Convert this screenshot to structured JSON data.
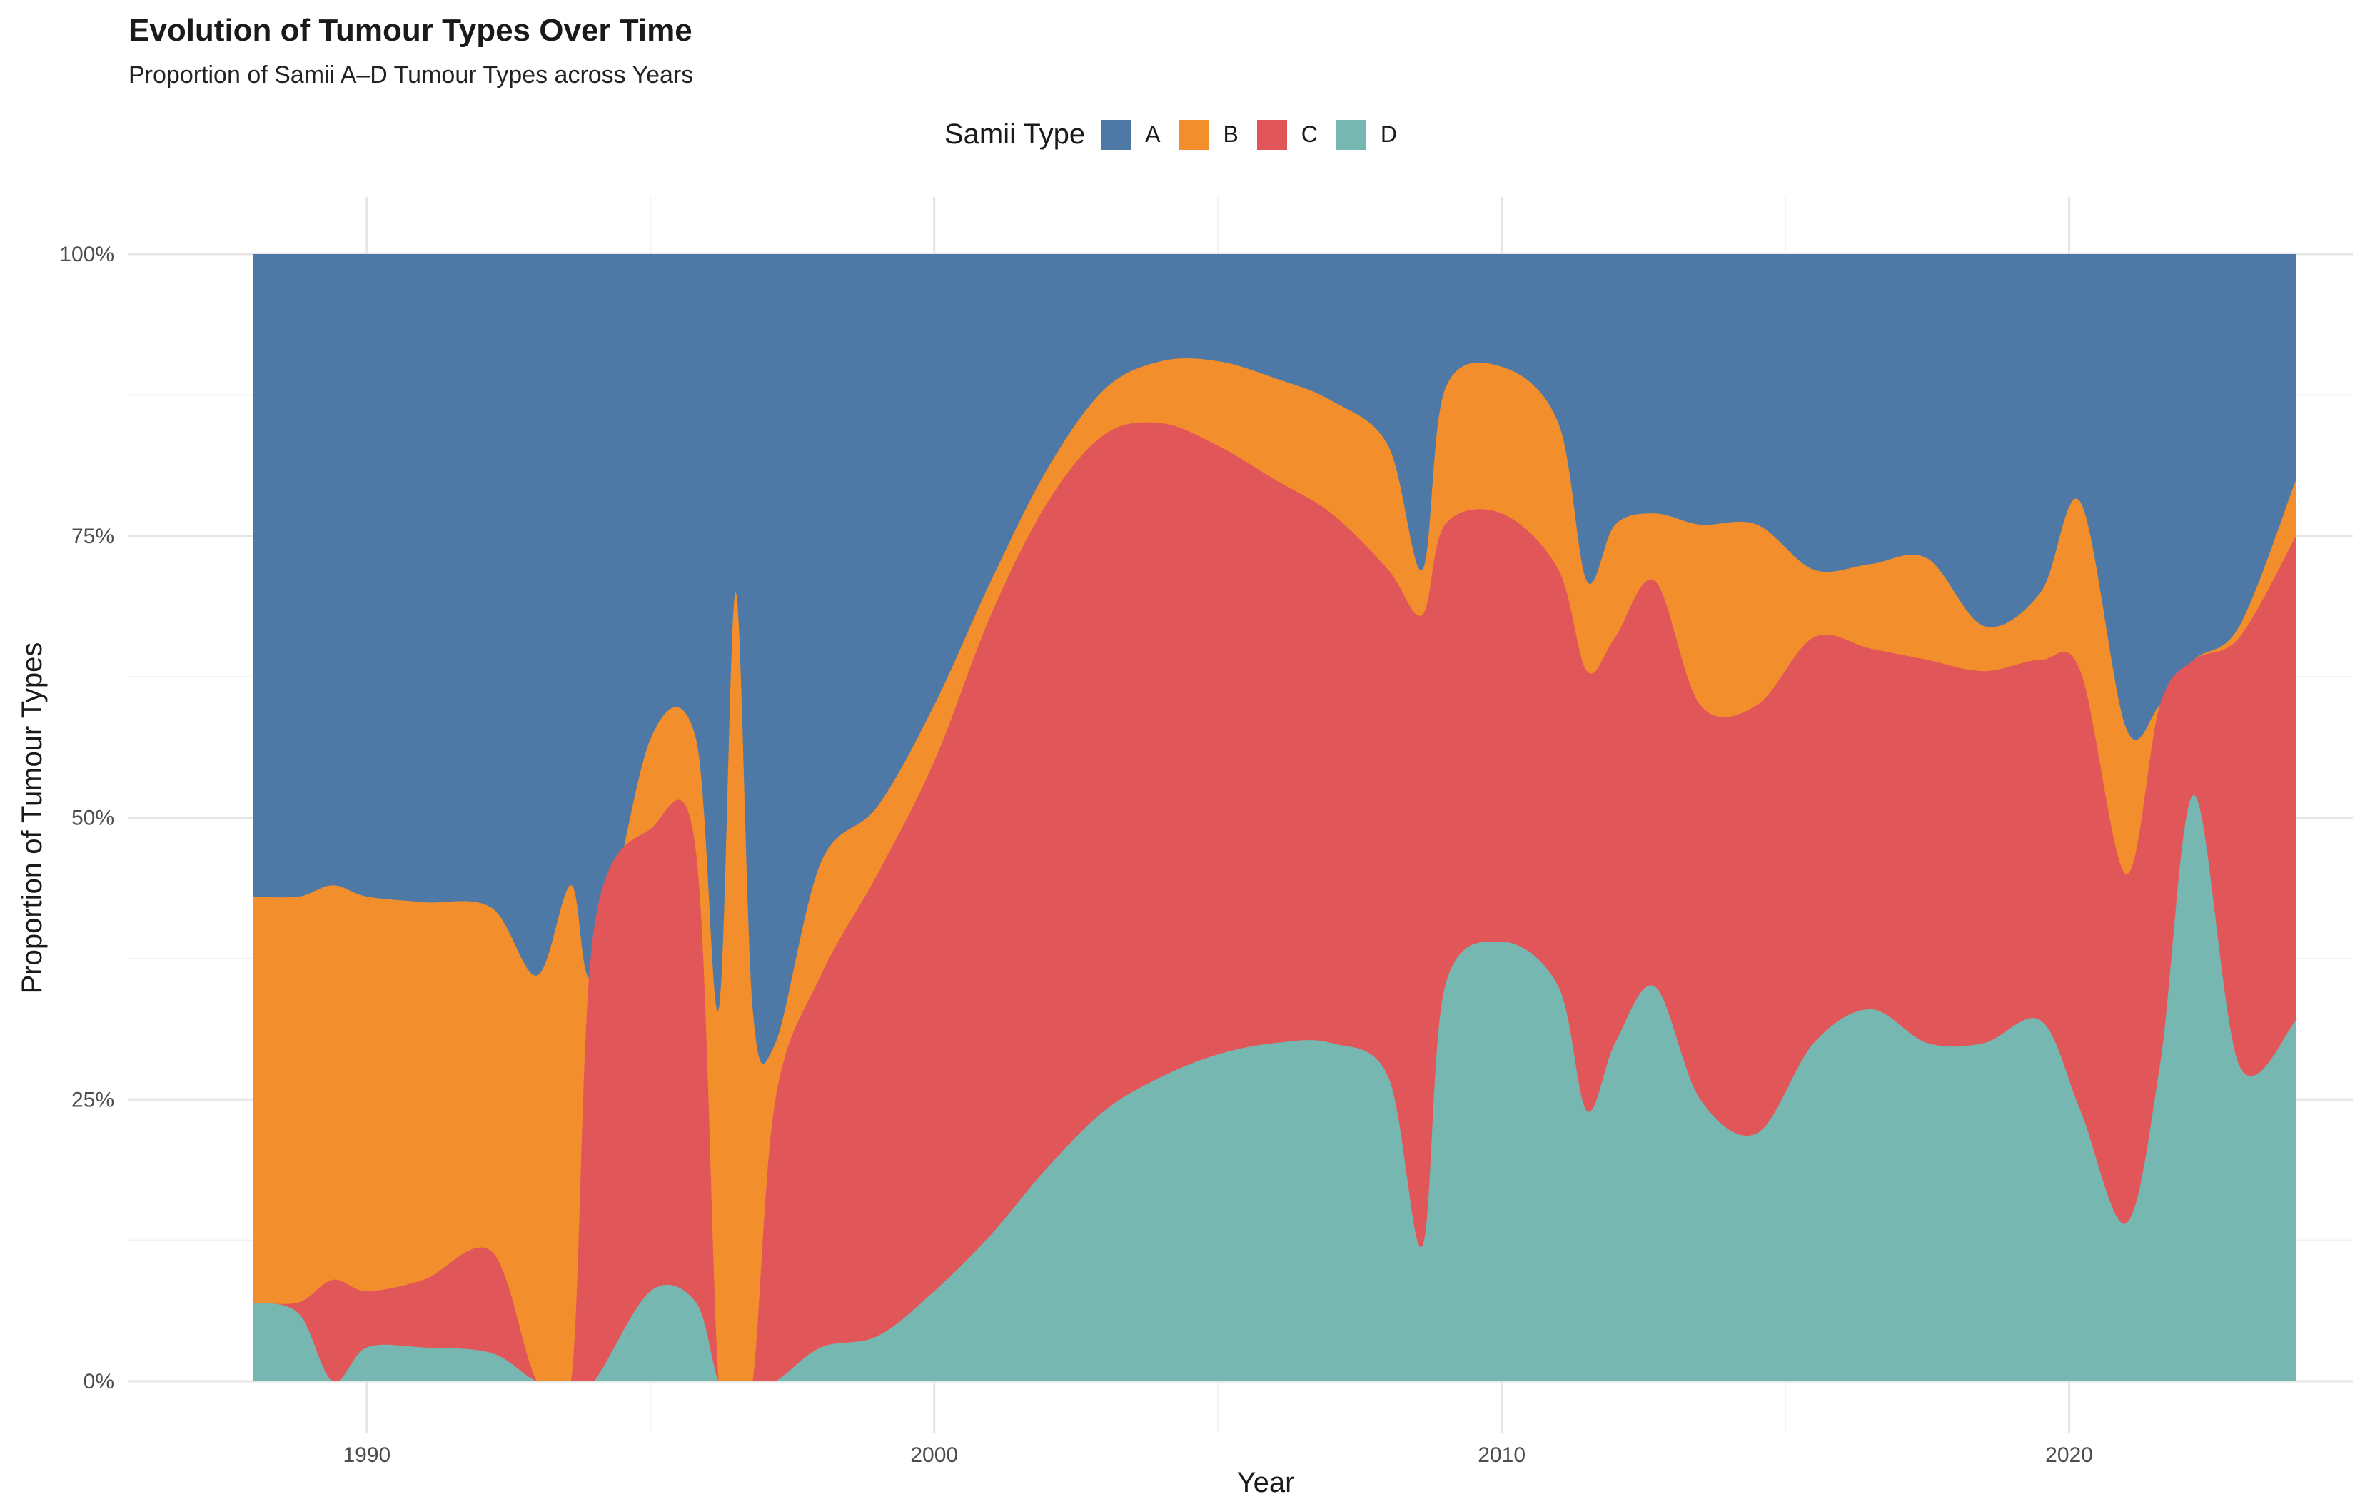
{
  "chart_data": {
    "type": "area",
    "stacked": "proportion",
    "title": "Evolution of Tumour Types Over Time",
    "subtitle": "Proportion of Samii A–D Tumour Types across Years",
    "xlabel": "Year",
    "ylabel": "Proportion of Tumour Types",
    "xlim": [
      1985.8,
      2025
    ],
    "ylim": [
      0,
      1
    ],
    "x_ticks": [
      1990,
      2000,
      2010,
      2020
    ],
    "x_tick_labels": [
      "1990",
      "2000",
      "2010",
      "2020"
    ],
    "y_ticks": [
      0,
      0.25,
      0.5,
      0.75,
      1.0
    ],
    "y_tick_labels": [
      "0%",
      "25%",
      "50%",
      "75%",
      "100%"
    ],
    "grid": true,
    "legend": {
      "title": "Samii Type",
      "position": "top",
      "items": [
        {
          "label": "A",
          "color": "#4e79a7"
        },
        {
          "label": "B",
          "color": "#f28e2b"
        },
        {
          "label": "C",
          "color": "#e15759"
        },
        {
          "label": "D",
          "color": "#76b7b2"
        }
      ]
    },
    "x": [
      1988,
      1988.8,
      1989.4,
      1990,
      1991,
      1992.2,
      1993,
      1993.6,
      1994,
      1995,
      1995.8,
      1996.2,
      1996.5,
      1996.8,
      1997.2,
      1998,
      1999,
      2000,
      2001,
      2002,
      2003,
      2004,
      2005,
      2006,
      2007,
      2008,
      2008.6,
      2009,
      2010,
      2011,
      2011.5,
      2012,
      2012.7,
      2013.5,
      2014.5,
      2015.5,
      2016.5,
      2017.5,
      2018.5,
      2019.5,
      2020.2,
      2021,
      2021.6,
      2022.2,
      2023,
      2024
    ],
    "cumulative_upper_boundaries": {
      "D": [
        0.07,
        0.06,
        0.0,
        0.03,
        0.03,
        0.025,
        0.0,
        0.0,
        0.0,
        0.08,
        0.07,
        0.0,
        0.0,
        0.0,
        0.0,
        0.03,
        0.04,
        0.08,
        0.13,
        0.19,
        0.24,
        0.27,
        0.29,
        0.3,
        0.3,
        0.27,
        0.12,
        0.35,
        0.39,
        0.35,
        0.24,
        0.3,
        0.35,
        0.25,
        0.22,
        0.3,
        0.33,
        0.3,
        0.3,
        0.32,
        0.24,
        0.14,
        0.28,
        0.52,
        0.28,
        0.32
      ],
      "C": [
        0.07,
        0.07,
        0.09,
        0.08,
        0.09,
        0.115,
        0.0,
        0.0,
        0.4,
        0.49,
        0.47,
        0.0,
        0.0,
        0.0,
        0.25,
        0.36,
        0.45,
        0.55,
        0.68,
        0.78,
        0.84,
        0.85,
        0.83,
        0.8,
        0.77,
        0.72,
        0.68,
        0.76,
        0.77,
        0.72,
        0.63,
        0.66,
        0.71,
        0.6,
        0.6,
        0.66,
        0.65,
        0.64,
        0.63,
        0.64,
        0.63,
        0.45,
        0.6,
        0.64,
        0.66,
        0.75
      ],
      "B": [
        0.43,
        0.43,
        0.44,
        0.43,
        0.425,
        0.42,
        0.36,
        0.44,
        0.36,
        0.57,
        0.57,
        0.33,
        0.7,
        0.33,
        0.3,
        0.46,
        0.51,
        0.6,
        0.71,
        0.81,
        0.88,
        0.905,
        0.905,
        0.89,
        0.87,
        0.83,
        0.72,
        0.88,
        0.9,
        0.85,
        0.71,
        0.76,
        0.77,
        0.76,
        0.76,
        0.72,
        0.725,
        0.73,
        0.67,
        0.7,
        0.78,
        0.58,
        0.6,
        0.64,
        0.67,
        0.8
      ],
      "A": [
        1,
        1,
        1,
        1,
        1,
        1,
        1,
        1,
        1,
        1,
        1,
        1,
        1,
        1,
        1,
        1,
        1,
        1,
        1,
        1,
        1,
        1,
        1,
        1,
        1,
        1,
        1,
        1,
        1,
        1,
        1,
        1,
        1,
        1,
        1,
        1,
        1,
        1,
        1,
        1,
        1,
        1,
        1,
        1,
        1,
        1
      ]
    }
  }
}
